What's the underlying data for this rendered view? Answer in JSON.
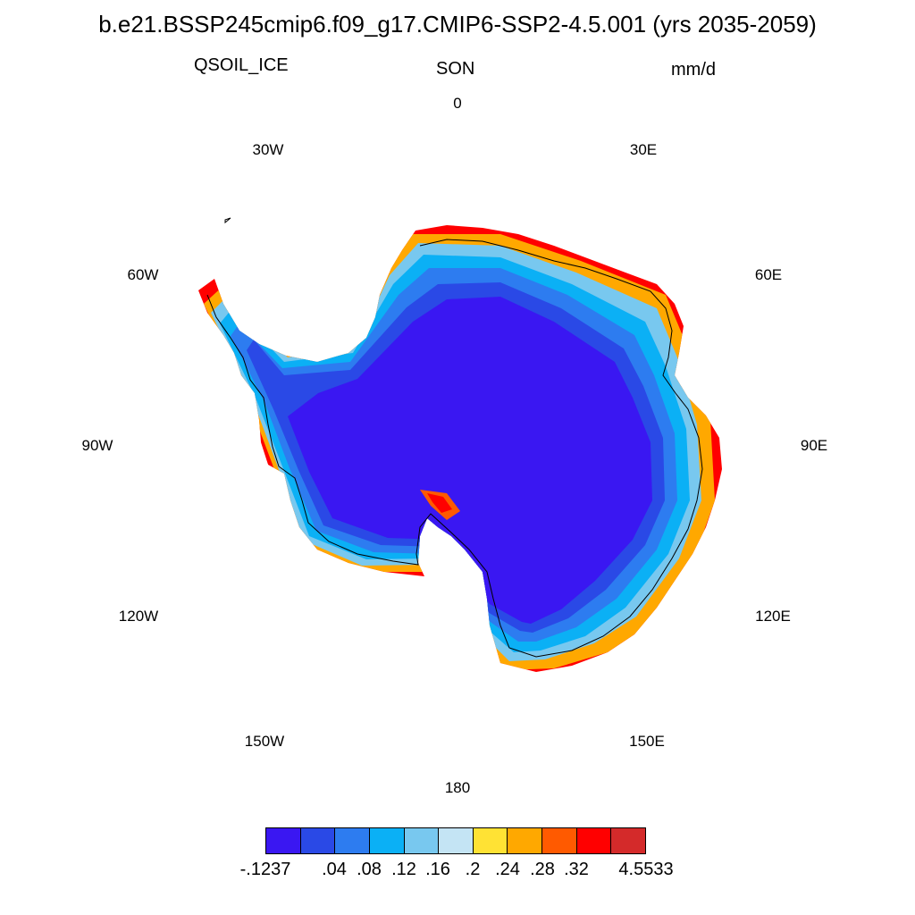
{
  "title": "b.e21.BSSP245cmip6.f09_g17.CMIP6-SSP2-4.5.001 (yrs 2035-2059)",
  "variable": "QSOIL_ICE",
  "season": "SON",
  "units": "mm/d",
  "longitude_labels": [
    "0",
    "30E",
    "60E",
    "90E",
    "120E",
    "150E",
    "180",
    "150W",
    "120W",
    "90W",
    "60W",
    "30W"
  ],
  "colorbar": {
    "colors": [
      "#3a17f2",
      "#2a49e6",
      "#2d7cf0",
      "#0bb0f5",
      "#78c8ef",
      "#c4e4f4",
      "#ffe234",
      "#ffa800",
      "#ff5a00",
      "#ff0000",
      "#d42a2a"
    ],
    "labels": [
      "-.1237",
      ".04",
      ".08",
      ".12",
      ".16",
      ".2",
      ".24",
      ".28",
      ".32",
      "4.5533"
    ]
  }
}
